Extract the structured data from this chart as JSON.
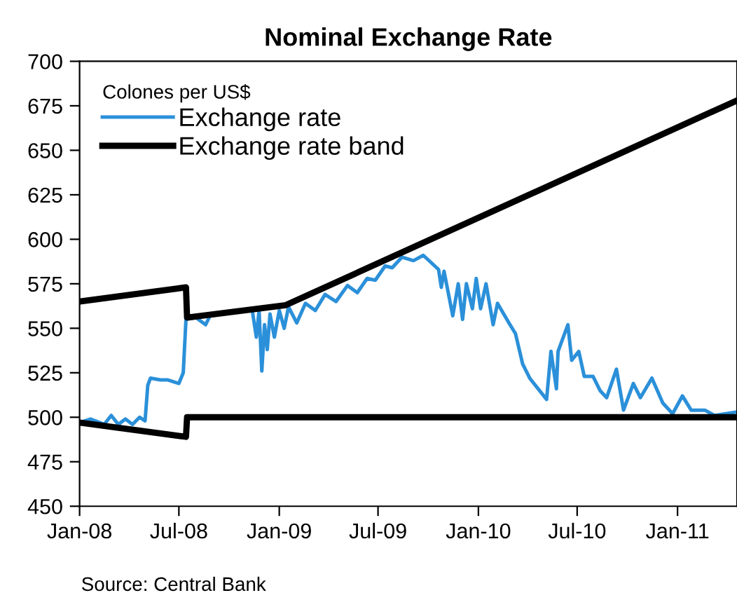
{
  "chart_data": {
    "type": "line",
    "title": "Nominal Exchange Rate",
    "legend_title": "Colones per US$",
    "series": [
      {
        "name": "Exchange rate",
        "color": "#2b90d9",
        "x": [
          "2008-01-01",
          "2008-01-21",
          "2008-02-15",
          "2008-02-28",
          "2008-03-12",
          "2008-03-25",
          "2008-04-07",
          "2008-04-20",
          "2008-04-30",
          "2008-05-05",
          "2008-05-10",
          "2008-05-28",
          "2008-06-10",
          "2008-07-01",
          "2008-07-09",
          "2008-07-14",
          "2008-08-01",
          "2008-08-19",
          "2008-08-27",
          "2008-09-21",
          "2008-10-17",
          "2008-11-12",
          "2008-11-20",
          "2008-11-25",
          "2008-11-30",
          "2008-12-05",
          "2008-12-10",
          "2008-12-15",
          "2008-12-23",
          "2009-01-01",
          "2009-01-10",
          "2009-01-18",
          "2009-02-02",
          "2009-02-18",
          "2009-03-08",
          "2009-03-26",
          "2009-04-15",
          "2009-05-06",
          "2009-05-24",
          "2009-06-11",
          "2009-06-26",
          "2009-07-14",
          "2009-07-27",
          "2009-08-14",
          "2009-09-04",
          "2009-09-22",
          "2009-10-20",
          "2009-10-25",
          "2009-10-30",
          "2009-11-15",
          "2009-11-25",
          "2009-12-03",
          "2009-12-10",
          "2009-12-21",
          "2009-12-28",
          "2010-01-05",
          "2010-01-15",
          "2010-01-28",
          "2010-02-05",
          "2010-02-26",
          "2010-03-10",
          "2010-03-23",
          "2010-04-05",
          "2010-05-06",
          "2010-05-14",
          "2010-05-24",
          "2010-05-27",
          "2010-06-14",
          "2010-06-21",
          "2010-07-04",
          "2010-07-14",
          "2010-07-30",
          "2010-08-12",
          "2010-08-24",
          "2010-09-11",
          "2010-09-24",
          "2010-10-12",
          "2010-10-25",
          "2010-11-15",
          "2010-12-05",
          "2010-12-23",
          "2011-01-10",
          "2011-01-26",
          "2011-02-20",
          "2011-03-10",
          "2011-04-20"
        ],
        "values": [
          497,
          499,
          496,
          501,
          496,
          499,
          496,
          500,
          498,
          518,
          522,
          521,
          521,
          519,
          525,
          555,
          556,
          552,
          557,
          558,
          560,
          561,
          545,
          560,
          526,
          552,
          538,
          558,
          545,
          560,
          550,
          562,
          553,
          564,
          560,
          569,
          565,
          574,
          570,
          578,
          577,
          585,
          584,
          590,
          588,
          591,
          583,
          573,
          582,
          557,
          575,
          555,
          575,
          561,
          578,
          561,
          575,
          552,
          564,
          553,
          547,
          530,
          522,
          510,
          537,
          516,
          537,
          552,
          532,
          537,
          523,
          523,
          515,
          511,
          527,
          504,
          519,
          511,
          522,
          508,
          502,
          512,
          504,
          504,
          501,
          503
        ]
      },
      {
        "name": "Exchange rate band",
        "color": "#000000",
        "x": [
          "2008-01-01",
          "2008-07-14",
          "2008-07-16",
          "2009-01-13",
          "2011-04-20"
        ],
        "values": [
          565,
          573,
          556,
          563,
          678
        ]
      },
      {
        "color": "#000000",
        "x": [
          "2008-01-01",
          "2008-07-14",
          "2008-07-16",
          "2011-04-20"
        ],
        "values": [
          497,
          489,
          500,
          500
        ]
      }
    ],
    "xlim": [
      "2008-01-01",
      "2011-04-20"
    ],
    "xticks": [
      {
        "value": "2008-01-01",
        "label": "Jan-08"
      },
      {
        "value": "2008-07-01",
        "label": "Jul-08"
      },
      {
        "value": "2009-01-01",
        "label": "Jan-09"
      },
      {
        "value": "2009-07-01",
        "label": "Jul-09"
      },
      {
        "value": "2010-01-01",
        "label": "Jan-10"
      },
      {
        "value": "2010-07-01",
        "label": "Jul-10"
      },
      {
        "value": "2011-01-01",
        "label": "Jan-11"
      }
    ],
    "ylim": [
      450,
      700
    ],
    "yticks": [
      450,
      475,
      500,
      525,
      550,
      575,
      600,
      625,
      650,
      675,
      700
    ],
    "grid": false,
    "legend": "top left",
    "line_style": "solid",
    "marker": "none",
    "annotations": [
      "Source: Central Bank"
    ]
  }
}
